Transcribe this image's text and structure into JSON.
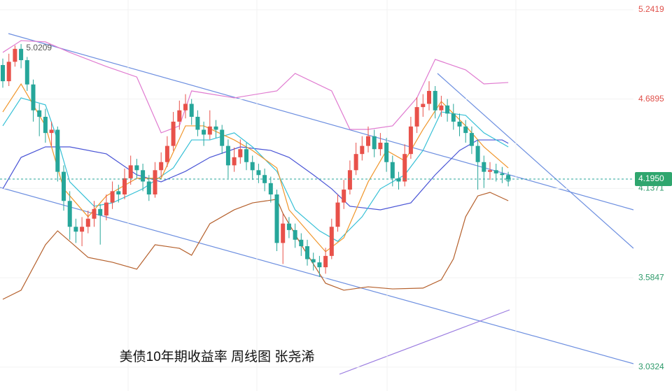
{
  "chart_data": {
    "type": "candlestick",
    "title": "美债10年期收益率 周线图 张尧浠",
    "ylim": [
      2.885,
      5.302
    ],
    "yticks": [
      5.2419,
      4.6895,
      4.1371,
      3.5847,
      3.0324
    ],
    "grid": true,
    "up_color": "#e8514a",
    "down_color": "#26a69a",
    "price_label": {
      "value": 4.195,
      "label": "4.1950"
    },
    "high_label_index": 2,
    "open": [
      4.9,
      4.8,
      4.92,
      5.0,
      4.93,
      4.78,
      4.62,
      4.58,
      4.48,
      4.5,
      4.24,
      4.06,
      3.9,
      3.87,
      3.9,
      3.95,
      4.01,
      3.97,
      4.05,
      4.12,
      4.1,
      4.2,
      4.28,
      4.25,
      4.18,
      4.1,
      4.25,
      4.3,
      4.4,
      4.55,
      4.62,
      4.66,
      4.58,
      4.5,
      4.47,
      4.52,
      4.5,
      4.4,
      4.28,
      4.33,
      4.38,
      4.3,
      4.25,
      4.22,
      4.17,
      4.1,
      3.8,
      3.92,
      3.88,
      3.82,
      3.78,
      3.7,
      3.68,
      3.65,
      3.72,
      3.9,
      4.05,
      4.13,
      4.25,
      4.35,
      4.4,
      4.46,
      4.38,
      4.42,
      4.3,
      4.2,
      4.18,
      4.35,
      4.52,
      4.64,
      4.66,
      4.74,
      4.62,
      4.65,
      4.6,
      4.55,
      4.52,
      4.48,
      4.4,
      4.3,
      4.24,
      4.25,
      4.23,
      4.22
    ],
    "high": [
      4.94,
      4.97,
      5.0209,
      5.03,
      4.95,
      4.81,
      4.66,
      4.63,
      4.55,
      4.52,
      4.28,
      4.12,
      3.95,
      3.96,
      4.0,
      4.06,
      4.04,
      4.1,
      4.18,
      4.16,
      4.26,
      4.34,
      4.32,
      4.29,
      4.22,
      4.3,
      4.36,
      4.46,
      4.61,
      4.68,
      4.72,
      4.69,
      4.62,
      4.55,
      4.62,
      4.56,
      4.53,
      4.44,
      4.39,
      4.44,
      4.42,
      4.34,
      4.29,
      4.26,
      4.21,
      4.13,
      3.98,
      3.96,
      3.92,
      3.86,
      3.82,
      3.74,
      3.72,
      3.77,
      3.95,
      4.1,
      4.19,
      4.31,
      4.42,
      4.46,
      4.52,
      4.5,
      4.48,
      4.45,
      4.34,
      4.24,
      4.41,
      4.58,
      4.7,
      4.72,
      4.8,
      4.77,
      4.71,
      4.69,
      4.66,
      4.6,
      4.56,
      4.52,
      4.44,
      4.34,
      4.3,
      4.29,
      4.27,
      4.24
    ],
    "low": [
      4.76,
      4.77,
      4.89,
      4.88,
      4.74,
      4.55,
      4.46,
      4.42,
      4.4,
      4.18,
      4.0,
      3.82,
      3.8,
      3.78,
      3.86,
      3.9,
      3.79,
      3.94,
      4.01,
      4.05,
      4.07,
      4.16,
      4.2,
      4.12,
      4.06,
      4.08,
      4.21,
      4.27,
      4.37,
      4.5,
      4.57,
      4.53,
      4.46,
      4.4,
      4.44,
      4.45,
      4.35,
      4.2,
      4.24,
      4.29,
      4.25,
      4.19,
      4.17,
      4.12,
      4.05,
      3.75,
      3.67,
      3.83,
      3.77,
      3.72,
      3.66,
      3.63,
      3.59,
      3.61,
      3.7,
      3.87,
      4.01,
      4.1,
      4.22,
      4.31,
      4.36,
      4.33,
      4.34,
      4.24,
      4.15,
      4.13,
      4.15,
      4.32,
      4.48,
      4.58,
      4.62,
      4.57,
      4.58,
      4.55,
      4.5,
      4.46,
      4.42,
      4.35,
      4.13,
      4.14,
      4.19,
      4.18,
      4.17,
      4.15
    ],
    "close": [
      4.8,
      4.92,
      5.0,
      4.93,
      4.78,
      4.62,
      4.58,
      4.48,
      4.5,
      4.24,
      4.06,
      3.9,
      3.87,
      3.9,
      3.95,
      4.01,
      3.97,
      4.05,
      4.12,
      4.1,
      4.2,
      4.28,
      4.25,
      4.18,
      4.1,
      4.25,
      4.3,
      4.4,
      4.55,
      4.62,
      4.66,
      4.58,
      4.5,
      4.47,
      4.52,
      4.5,
      4.4,
      4.28,
      4.33,
      4.38,
      4.3,
      4.25,
      4.22,
      4.17,
      4.1,
      3.8,
      3.92,
      3.88,
      3.82,
      3.78,
      3.7,
      3.68,
      3.65,
      3.72,
      3.9,
      4.05,
      4.13,
      4.25,
      4.35,
      4.4,
      4.46,
      4.38,
      4.42,
      4.3,
      4.2,
      4.18,
      4.35,
      4.52,
      4.64,
      4.66,
      4.74,
      4.62,
      4.65,
      4.6,
      4.55,
      4.52,
      4.48,
      4.4,
      4.3,
      4.24,
      4.25,
      4.23,
      4.22,
      4.195
    ],
    "lines": [
      {
        "color": "#e07bd0",
        "x": [
          0,
          3,
          7,
          11,
          17,
          22,
          23,
          26,
          29,
          31,
          38,
          45,
          48,
          54,
          57,
          60,
          64,
          68,
          71,
          76,
          79,
          83
        ],
        "values": [
          4.978,
          5.051,
          5.043,
          4.978,
          4.891,
          4.826,
          4.74,
          4.481,
          4.524,
          4.74,
          4.697,
          4.74,
          4.848,
          4.74,
          4.502,
          4.502,
          4.524,
          4.697,
          4.935,
          4.87,
          4.783,
          4.792
        ]
      },
      {
        "color": "#b5602c",
        "x": [
          0,
          3,
          7,
          9,
          11,
          14,
          18,
          22,
          25,
          29,
          31,
          34,
          38,
          41,
          45,
          46,
          49,
          53,
          56,
          60,
          64,
          69,
          72,
          74,
          76,
          78,
          80,
          83
        ],
        "values": [
          3.452,
          3.508,
          3.789,
          3.875,
          3.81,
          3.711,
          3.681,
          3.638,
          3.789,
          3.767,
          3.724,
          3.919,
          4.005,
          4.048,
          4.07,
          3.983,
          3.789,
          3.551,
          3.508,
          3.529,
          3.516,
          3.521,
          3.573,
          3.702,
          3.962,
          4.091,
          4.113,
          4.061
        ]
      },
      {
        "color": "#4a55d6",
        "x": [
          0,
          3,
          7,
          11,
          17,
          22,
          26,
          30,
          34,
          39,
          44,
          47,
          51,
          54,
          57,
          62,
          67,
          71,
          75,
          78,
          82,
          83
        ],
        "values": [
          4.135,
          4.329,
          4.394,
          4.394,
          4.351,
          4.221,
          4.178,
          4.243,
          4.329,
          4.394,
          4.372,
          4.329,
          4.221,
          4.135,
          4.027,
          4.005,
          4.048,
          4.221,
          4.372,
          4.437,
          4.437,
          4.416
        ]
      },
      {
        "color": "#36c0d6",
        "x": [
          0,
          3,
          7,
          9,
          11,
          15,
          18,
          23,
          28,
          31,
          34,
          38,
          41,
          45,
          48,
          52,
          55,
          59,
          62,
          66,
          69,
          72,
          76,
          79,
          83
        ],
        "values": [
          4.524,
          4.697,
          4.654,
          4.437,
          4.178,
          4.027,
          4.048,
          4.135,
          4.264,
          4.437,
          4.437,
          4.481,
          4.394,
          4.243,
          4.005,
          3.875,
          3.81,
          3.962,
          4.135,
          4.221,
          4.372,
          4.61,
          4.589,
          4.481,
          4.394
        ]
      },
      {
        "color": "#f0962b",
        "x": [
          0,
          3,
          7,
          10,
          14,
          17,
          22,
          26,
          30,
          33,
          38,
          41,
          45,
          47,
          51,
          53,
          56,
          60,
          63,
          66,
          69,
          72,
          76,
          79,
          83
        ],
        "values": [
          4.61,
          4.783,
          4.524,
          4.135,
          3.962,
          4.091,
          4.2,
          4.2,
          4.524,
          4.524,
          4.437,
          4.372,
          4.264,
          4.005,
          3.832,
          3.746,
          3.832,
          4.178,
          4.372,
          4.308,
          4.502,
          4.675,
          4.524,
          4.394,
          4.264
        ]
      }
    ]
  }
}
